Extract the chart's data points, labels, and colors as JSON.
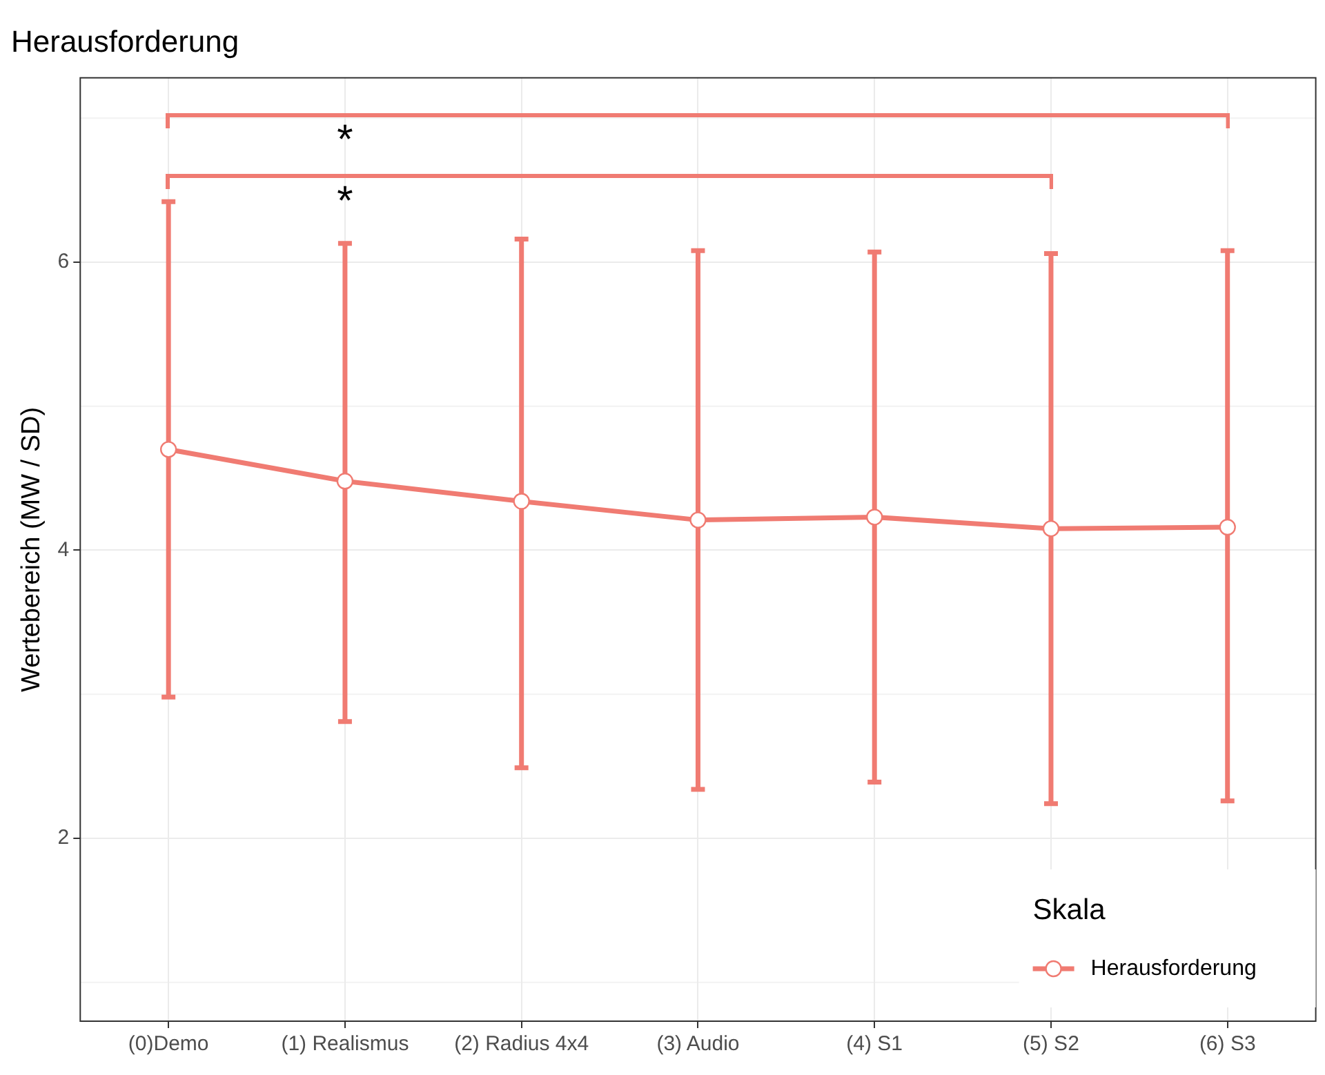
{
  "chart_data": {
    "type": "line",
    "title": "Herausforderung",
    "ylabel": "Wertebereich (MW / SD)",
    "legend_title": "Skala",
    "legend": "bottom right",
    "categories": [
      "(0)Demo",
      "(1) Realismus",
      "(2) Radius 4x4",
      "(3) Audio",
      "(4) S1",
      "(5) S2",
      "(6) S3"
    ],
    "series": [
      {
        "name": "Herausforderung",
        "color": "#f07b72",
        "values": [
          4.7,
          4.48,
          4.34,
          4.21,
          4.23,
          4.15,
          4.16
        ],
        "errors": [
          [
            2.98,
            6.42
          ],
          [
            2.81,
            6.13
          ],
          [
            2.49,
            6.16
          ],
          [
            2.34,
            6.08
          ],
          [
            2.39,
            6.07
          ],
          [
            2.24,
            6.06
          ],
          [
            2.26,
            6.08
          ]
        ]
      }
    ],
    "ylim": [
      0.73,
      7.28
    ],
    "yticks": [
      2,
      4,
      6
    ],
    "grid": true,
    "marker": "circle",
    "line_style": "solid",
    "annotations": [
      "*",
      "*"
    ]
  }
}
